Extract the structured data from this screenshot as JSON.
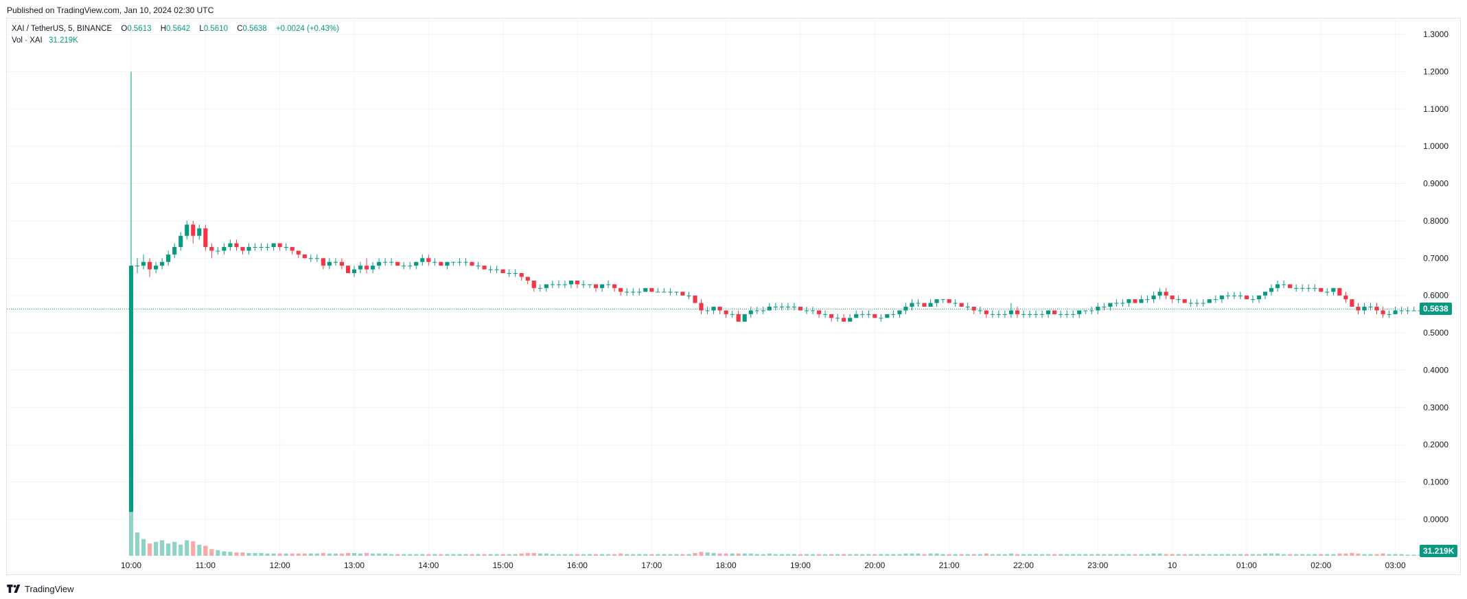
{
  "header": {
    "published": "Published on TradingView.com, Jan 10, 2024 02:30 UTC"
  },
  "legend": {
    "symbol": "XAI / TetherUS, 5, BINANCE",
    "open_label": "O",
    "open": "0.5613",
    "high_label": "H",
    "high": "0.5642",
    "low_label": "L",
    "low": "0.5610",
    "close_label": "C",
    "close": "0.5638",
    "change": "+0.0024 (+0.43%)",
    "vol_label": "Vol · XAI",
    "vol_value": "31.219K"
  },
  "price_tag": "0.5638",
  "volume_tag": "31.219K",
  "footer": {
    "brand": "TradingView"
  },
  "colors": {
    "up": "#089981",
    "down": "#f23645",
    "up_volume": "#8fd3c6",
    "down_volume": "#f7a9a9",
    "grid": "#f0f3fa",
    "text": "#131722"
  },
  "chart_data": {
    "type": "candlestick",
    "title": "XAI / TetherUS, 5, BINANCE",
    "interval_minutes": 5,
    "ylim": [
      -0.05,
      1.32
    ],
    "y_ticks": [
      "1.3000",
      "1.2000",
      "1.1000",
      "1.0000",
      "0.9000",
      "0.8000",
      "0.7000",
      "0.6000",
      "0.5000",
      "0.4000",
      "0.3000",
      "0.2000",
      "0.1000",
      "0.0000"
    ],
    "x_ticks": [
      "10:00",
      "11:00",
      "12:00",
      "13:00",
      "14:00",
      "15:00",
      "16:00",
      "17:00",
      "18:00",
      "19:00",
      "20:00",
      "21:00",
      "22:00",
      "23:00",
      "10",
      "01:00",
      "02:00",
      "03:00"
    ],
    "last_price": 0.5638,
    "grid": true,
    "candles": [
      [
        0.02,
        1.2,
        0.02,
        0.68,
        2.15
      ],
      [
        0.68,
        0.7,
        0.66,
        0.68,
        0.42
      ],
      [
        0.68,
        0.71,
        0.67,
        0.69,
        0.3
      ],
      [
        0.69,
        0.7,
        0.65,
        0.67,
        0.22
      ],
      [
        0.67,
        0.69,
        0.66,
        0.68,
        0.25
      ],
      [
        0.68,
        0.7,
        0.67,
        0.69,
        0.28
      ],
      [
        0.69,
        0.72,
        0.68,
        0.71,
        0.22
      ],
      [
        0.71,
        0.74,
        0.7,
        0.73,
        0.25
      ],
      [
        0.73,
        0.77,
        0.72,
        0.76,
        0.2
      ],
      [
        0.76,
        0.8,
        0.75,
        0.79,
        0.28
      ],
      [
        0.79,
        0.8,
        0.74,
        0.76,
        0.26
      ],
      [
        0.76,
        0.79,
        0.75,
        0.78,
        0.2
      ],
      [
        0.78,
        0.79,
        0.72,
        0.73,
        0.18
      ],
      [
        0.73,
        0.74,
        0.7,
        0.72,
        0.12
      ],
      [
        0.72,
        0.73,
        0.71,
        0.72,
        0.1
      ],
      [
        0.72,
        0.74,
        0.71,
        0.73,
        0.08
      ],
      [
        0.73,
        0.75,
        0.72,
        0.74,
        0.07
      ],
      [
        0.74,
        0.75,
        0.72,
        0.73,
        0.06
      ],
      [
        0.73,
        0.73,
        0.71,
        0.72,
        0.06
      ],
      [
        0.72,
        0.74,
        0.71,
        0.73,
        0.05
      ],
      [
        0.73,
        0.74,
        0.72,
        0.73,
        0.05
      ],
      [
        0.73,
        0.74,
        0.72,
        0.73,
        0.05
      ],
      [
        0.73,
        0.74,
        0.72,
        0.73,
        0.04
      ],
      [
        0.73,
        0.74,
        0.72,
        0.74,
        0.04
      ],
      [
        0.74,
        0.74,
        0.72,
        0.73,
        0.04
      ],
      [
        0.73,
        0.74,
        0.72,
        0.73,
        0.04
      ],
      [
        0.73,
        0.73,
        0.71,
        0.72,
        0.04
      ],
      [
        0.72,
        0.72,
        0.7,
        0.71,
        0.04
      ],
      [
        0.71,
        0.71,
        0.7,
        0.7,
        0.04
      ],
      [
        0.7,
        0.71,
        0.69,
        0.7,
        0.04
      ],
      [
        0.7,
        0.71,
        0.69,
        0.7,
        0.04
      ],
      [
        0.7,
        0.7,
        0.67,
        0.68,
        0.05
      ],
      [
        0.68,
        0.7,
        0.67,
        0.69,
        0.04
      ],
      [
        0.69,
        0.7,
        0.68,
        0.69,
        0.04
      ],
      [
        0.69,
        0.7,
        0.67,
        0.68,
        0.04
      ],
      [
        0.68,
        0.68,
        0.66,
        0.66,
        0.05
      ],
      [
        0.66,
        0.68,
        0.65,
        0.67,
        0.05
      ],
      [
        0.67,
        0.69,
        0.66,
        0.68,
        0.04
      ],
      [
        0.68,
        0.7,
        0.66,
        0.67,
        0.05
      ],
      [
        0.67,
        0.69,
        0.66,
        0.68,
        0.04
      ],
      [
        0.68,
        0.7,
        0.67,
        0.69,
        0.04
      ],
      [
        0.69,
        0.7,
        0.68,
        0.69,
        0.04
      ],
      [
        0.69,
        0.7,
        0.68,
        0.69,
        0.03
      ],
      [
        0.69,
        0.69,
        0.68,
        0.68,
        0.03
      ],
      [
        0.68,
        0.69,
        0.67,
        0.68,
        0.03
      ],
      [
        0.68,
        0.69,
        0.67,
        0.68,
        0.03
      ],
      [
        0.68,
        0.69,
        0.67,
        0.69,
        0.03
      ],
      [
        0.69,
        0.71,
        0.68,
        0.7,
        0.03
      ],
      [
        0.7,
        0.71,
        0.68,
        0.69,
        0.03
      ],
      [
        0.69,
        0.7,
        0.68,
        0.69,
        0.03
      ],
      [
        0.69,
        0.69,
        0.68,
        0.68,
        0.03
      ],
      [
        0.68,
        0.69,
        0.67,
        0.69,
        0.03
      ],
      [
        0.69,
        0.69,
        0.68,
        0.69,
        0.03
      ],
      [
        0.69,
        0.7,
        0.68,
        0.69,
        0.03
      ],
      [
        0.69,
        0.7,
        0.68,
        0.69,
        0.03
      ],
      [
        0.69,
        0.69,
        0.68,
        0.68,
        0.03
      ],
      [
        0.68,
        0.69,
        0.67,
        0.68,
        0.03
      ],
      [
        0.68,
        0.68,
        0.67,
        0.67,
        0.03
      ],
      [
        0.67,
        0.68,
        0.66,
        0.67,
        0.03
      ],
      [
        0.67,
        0.68,
        0.66,
        0.67,
        0.03
      ],
      [
        0.67,
        0.67,
        0.66,
        0.66,
        0.03
      ],
      [
        0.66,
        0.67,
        0.65,
        0.66,
        0.03
      ],
      [
        0.66,
        0.67,
        0.65,
        0.66,
        0.03
      ],
      [
        0.66,
        0.66,
        0.64,
        0.65,
        0.04
      ],
      [
        0.65,
        0.65,
        0.63,
        0.64,
        0.05
      ],
      [
        0.64,
        0.64,
        0.61,
        0.62,
        0.05
      ],
      [
        0.62,
        0.63,
        0.61,
        0.62,
        0.04
      ],
      [
        0.62,
        0.63,
        0.61,
        0.63,
        0.04
      ],
      [
        0.63,
        0.64,
        0.62,
        0.63,
        0.03
      ],
      [
        0.63,
        0.64,
        0.62,
        0.63,
        0.03
      ],
      [
        0.63,
        0.64,
        0.62,
        0.63,
        0.03
      ],
      [
        0.63,
        0.64,
        0.62,
        0.64,
        0.03
      ],
      [
        0.64,
        0.64,
        0.62,
        0.63,
        0.03
      ],
      [
        0.63,
        0.64,
        0.62,
        0.63,
        0.03
      ],
      [
        0.63,
        0.63,
        0.62,
        0.63,
        0.03
      ],
      [
        0.63,
        0.63,
        0.61,
        0.62,
        0.03
      ],
      [
        0.62,
        0.63,
        0.61,
        0.63,
        0.03
      ],
      [
        0.63,
        0.64,
        0.62,
        0.63,
        0.03
      ],
      [
        0.63,
        0.63,
        0.61,
        0.62,
        0.03
      ],
      [
        0.62,
        0.62,
        0.6,
        0.61,
        0.04
      ],
      [
        0.61,
        0.62,
        0.6,
        0.61,
        0.03
      ],
      [
        0.61,
        0.62,
        0.6,
        0.61,
        0.03
      ],
      [
        0.61,
        0.62,
        0.6,
        0.61,
        0.03
      ],
      [
        0.61,
        0.62,
        0.61,
        0.62,
        0.03
      ],
      [
        0.62,
        0.62,
        0.61,
        0.61,
        0.03
      ],
      [
        0.61,
        0.62,
        0.61,
        0.61,
        0.03
      ],
      [
        0.61,
        0.62,
        0.61,
        0.61,
        0.03
      ],
      [
        0.61,
        0.62,
        0.6,
        0.61,
        0.03
      ],
      [
        0.61,
        0.61,
        0.6,
        0.61,
        0.03
      ],
      [
        0.61,
        0.61,
        0.6,
        0.6,
        0.03
      ],
      [
        0.6,
        0.61,
        0.59,
        0.6,
        0.03
      ],
      [
        0.6,
        0.6,
        0.58,
        0.58,
        0.05
      ],
      [
        0.58,
        0.59,
        0.55,
        0.56,
        0.07
      ],
      [
        0.56,
        0.57,
        0.55,
        0.56,
        0.06
      ],
      [
        0.56,
        0.57,
        0.55,
        0.57,
        0.05
      ],
      [
        0.57,
        0.57,
        0.55,
        0.56,
        0.04
      ],
      [
        0.56,
        0.56,
        0.54,
        0.55,
        0.04
      ],
      [
        0.55,
        0.56,
        0.54,
        0.55,
        0.04
      ],
      [
        0.55,
        0.56,
        0.53,
        0.53,
        0.04
      ],
      [
        0.53,
        0.55,
        0.53,
        0.55,
        0.04
      ],
      [
        0.55,
        0.57,
        0.54,
        0.56,
        0.04
      ],
      [
        0.56,
        0.57,
        0.55,
        0.56,
        0.03
      ],
      [
        0.56,
        0.57,
        0.55,
        0.56,
        0.03
      ],
      [
        0.56,
        0.58,
        0.56,
        0.57,
        0.04
      ],
      [
        0.57,
        0.58,
        0.56,
        0.57,
        0.03
      ],
      [
        0.57,
        0.58,
        0.56,
        0.57,
        0.03
      ],
      [
        0.57,
        0.58,
        0.56,
        0.57,
        0.03
      ],
      [
        0.57,
        0.58,
        0.56,
        0.57,
        0.03
      ],
      [
        0.57,
        0.57,
        0.56,
        0.56,
        0.03
      ],
      [
        0.56,
        0.57,
        0.55,
        0.56,
        0.03
      ],
      [
        0.56,
        0.57,
        0.55,
        0.56,
        0.03
      ],
      [
        0.56,
        0.56,
        0.54,
        0.55,
        0.03
      ],
      [
        0.55,
        0.56,
        0.54,
        0.55,
        0.03
      ],
      [
        0.55,
        0.55,
        0.53,
        0.54,
        0.03
      ],
      [
        0.54,
        0.55,
        0.53,
        0.54,
        0.03
      ],
      [
        0.54,
        0.55,
        0.53,
        0.53,
        0.03
      ],
      [
        0.53,
        0.55,
        0.53,
        0.54,
        0.03
      ],
      [
        0.54,
        0.56,
        0.54,
        0.55,
        0.03
      ],
      [
        0.55,
        0.56,
        0.54,
        0.55,
        0.03
      ],
      [
        0.55,
        0.56,
        0.54,
        0.55,
        0.03
      ],
      [
        0.55,
        0.55,
        0.54,
        0.54,
        0.03
      ],
      [
        0.54,
        0.55,
        0.53,
        0.54,
        0.03
      ],
      [
        0.54,
        0.55,
        0.54,
        0.55,
        0.03
      ],
      [
        0.55,
        0.56,
        0.54,
        0.55,
        0.03
      ],
      [
        0.55,
        0.56,
        0.54,
        0.56,
        0.03
      ],
      [
        0.56,
        0.58,
        0.55,
        0.57,
        0.04
      ],
      [
        0.57,
        0.59,
        0.56,
        0.58,
        0.04
      ],
      [
        0.58,
        0.59,
        0.57,
        0.58,
        0.04
      ],
      [
        0.58,
        0.58,
        0.57,
        0.57,
        0.03
      ],
      [
        0.57,
        0.59,
        0.57,
        0.58,
        0.04
      ],
      [
        0.58,
        0.59,
        0.57,
        0.59,
        0.04
      ],
      [
        0.59,
        0.59,
        0.58,
        0.59,
        0.03
      ],
      [
        0.59,
        0.59,
        0.58,
        0.58,
        0.03
      ],
      [
        0.58,
        0.59,
        0.57,
        0.58,
        0.03
      ],
      [
        0.58,
        0.58,
        0.57,
        0.57,
        0.03
      ],
      [
        0.57,
        0.58,
        0.56,
        0.57,
        0.03
      ],
      [
        0.57,
        0.57,
        0.55,
        0.56,
        0.03
      ],
      [
        0.56,
        0.57,
        0.55,
        0.56,
        0.03
      ],
      [
        0.56,
        0.56,
        0.54,
        0.55,
        0.04
      ],
      [
        0.55,
        0.56,
        0.54,
        0.55,
        0.03
      ],
      [
        0.55,
        0.56,
        0.54,
        0.55,
        0.03
      ],
      [
        0.55,
        0.56,
        0.54,
        0.55,
        0.03
      ],
      [
        0.55,
        0.58,
        0.54,
        0.56,
        0.04
      ],
      [
        0.56,
        0.57,
        0.54,
        0.55,
        0.03
      ],
      [
        0.55,
        0.56,
        0.54,
        0.55,
        0.03
      ],
      [
        0.55,
        0.56,
        0.54,
        0.55,
        0.03
      ],
      [
        0.55,
        0.56,
        0.54,
        0.55,
        0.03
      ],
      [
        0.55,
        0.56,
        0.54,
        0.55,
        0.03
      ],
      [
        0.55,
        0.56,
        0.54,
        0.56,
        0.03
      ],
      [
        0.56,
        0.56,
        0.55,
        0.55,
        0.03
      ],
      [
        0.55,
        0.56,
        0.54,
        0.55,
        0.03
      ],
      [
        0.55,
        0.56,
        0.54,
        0.55,
        0.03
      ],
      [
        0.55,
        0.56,
        0.54,
        0.55,
        0.03
      ],
      [
        0.55,
        0.56,
        0.54,
        0.56,
        0.03
      ],
      [
        0.56,
        0.56,
        0.55,
        0.56,
        0.03
      ],
      [
        0.56,
        0.57,
        0.55,
        0.56,
        0.03
      ],
      [
        0.56,
        0.58,
        0.55,
        0.57,
        0.03
      ],
      [
        0.57,
        0.58,
        0.56,
        0.57,
        0.03
      ],
      [
        0.57,
        0.58,
        0.56,
        0.58,
        0.03
      ],
      [
        0.58,
        0.59,
        0.57,
        0.58,
        0.03
      ],
      [
        0.58,
        0.59,
        0.57,
        0.58,
        0.03
      ],
      [
        0.58,
        0.59,
        0.57,
        0.59,
        0.03
      ],
      [
        0.59,
        0.59,
        0.58,
        0.58,
        0.03
      ],
      [
        0.58,
        0.6,
        0.58,
        0.59,
        0.03
      ],
      [
        0.59,
        0.6,
        0.58,
        0.59,
        0.03
      ],
      [
        0.59,
        0.61,
        0.58,
        0.6,
        0.04
      ],
      [
        0.6,
        0.62,
        0.59,
        0.61,
        0.04
      ],
      [
        0.61,
        0.62,
        0.59,
        0.6,
        0.03
      ],
      [
        0.6,
        0.6,
        0.58,
        0.59,
        0.03
      ],
      [
        0.59,
        0.6,
        0.58,
        0.59,
        0.03
      ],
      [
        0.59,
        0.59,
        0.58,
        0.58,
        0.03
      ],
      [
        0.58,
        0.59,
        0.57,
        0.58,
        0.03
      ],
      [
        0.58,
        0.59,
        0.57,
        0.58,
        0.03
      ],
      [
        0.58,
        0.59,
        0.57,
        0.58,
        0.03
      ],
      [
        0.58,
        0.59,
        0.58,
        0.59,
        0.03
      ],
      [
        0.59,
        0.6,
        0.58,
        0.59,
        0.03
      ],
      [
        0.59,
        0.6,
        0.58,
        0.6,
        0.03
      ],
      [
        0.6,
        0.61,
        0.59,
        0.6,
        0.03
      ],
      [
        0.6,
        0.61,
        0.59,
        0.6,
        0.03
      ],
      [
        0.6,
        0.61,
        0.59,
        0.6,
        0.03
      ],
      [
        0.6,
        0.6,
        0.59,
        0.59,
        0.03
      ],
      [
        0.59,
        0.6,
        0.58,
        0.59,
        0.03
      ],
      [
        0.59,
        0.6,
        0.58,
        0.6,
        0.03
      ],
      [
        0.6,
        0.61,
        0.59,
        0.61,
        0.04
      ],
      [
        0.61,
        0.63,
        0.6,
        0.62,
        0.04
      ],
      [
        0.62,
        0.64,
        0.61,
        0.63,
        0.04
      ],
      [
        0.63,
        0.64,
        0.62,
        0.63,
        0.03
      ],
      [
        0.63,
        0.63,
        0.62,
        0.62,
        0.03
      ],
      [
        0.62,
        0.63,
        0.61,
        0.62,
        0.03
      ],
      [
        0.62,
        0.63,
        0.61,
        0.62,
        0.03
      ],
      [
        0.62,
        0.63,
        0.61,
        0.62,
        0.03
      ],
      [
        0.62,
        0.63,
        0.61,
        0.62,
        0.03
      ],
      [
        0.62,
        0.62,
        0.61,
        0.61,
        0.03
      ],
      [
        0.61,
        0.62,
        0.6,
        0.61,
        0.03
      ],
      [
        0.61,
        0.62,
        0.6,
        0.62,
        0.03
      ],
      [
        0.62,
        0.62,
        0.6,
        0.6,
        0.04
      ],
      [
        0.6,
        0.61,
        0.58,
        0.59,
        0.04
      ],
      [
        0.59,
        0.59,
        0.57,
        0.57,
        0.05
      ],
      [
        0.57,
        0.58,
        0.55,
        0.56,
        0.04
      ],
      [
        0.56,
        0.58,
        0.55,
        0.57,
        0.03
      ],
      [
        0.57,
        0.58,
        0.56,
        0.57,
        0.03
      ],
      [
        0.57,
        0.58,
        0.55,
        0.56,
        0.03
      ],
      [
        0.56,
        0.57,
        0.54,
        0.55,
        0.04
      ],
      [
        0.55,
        0.56,
        0.54,
        0.55,
        0.03
      ],
      [
        0.55,
        0.57,
        0.55,
        0.56,
        0.03
      ],
      [
        0.56,
        0.57,
        0.55,
        0.56,
        0.03
      ],
      [
        0.56,
        0.57,
        0.55,
        0.56,
        0.02
      ],
      [
        0.56,
        0.57,
        0.56,
        0.56,
        0.02
      ],
      [
        0.56,
        0.57,
        0.55,
        0.56,
        0.02
      ],
      [
        0.56,
        0.57,
        0.56,
        0.56,
        0.02
      ],
      [
        0.56,
        0.57,
        0.55,
        0.56,
        0.02
      ],
      [
        0.56,
        0.57,
        0.56,
        0.56,
        0.02
      ],
      [
        0.5613,
        0.5642,
        0.561,
        0.5638,
        0.02
      ]
    ]
  }
}
